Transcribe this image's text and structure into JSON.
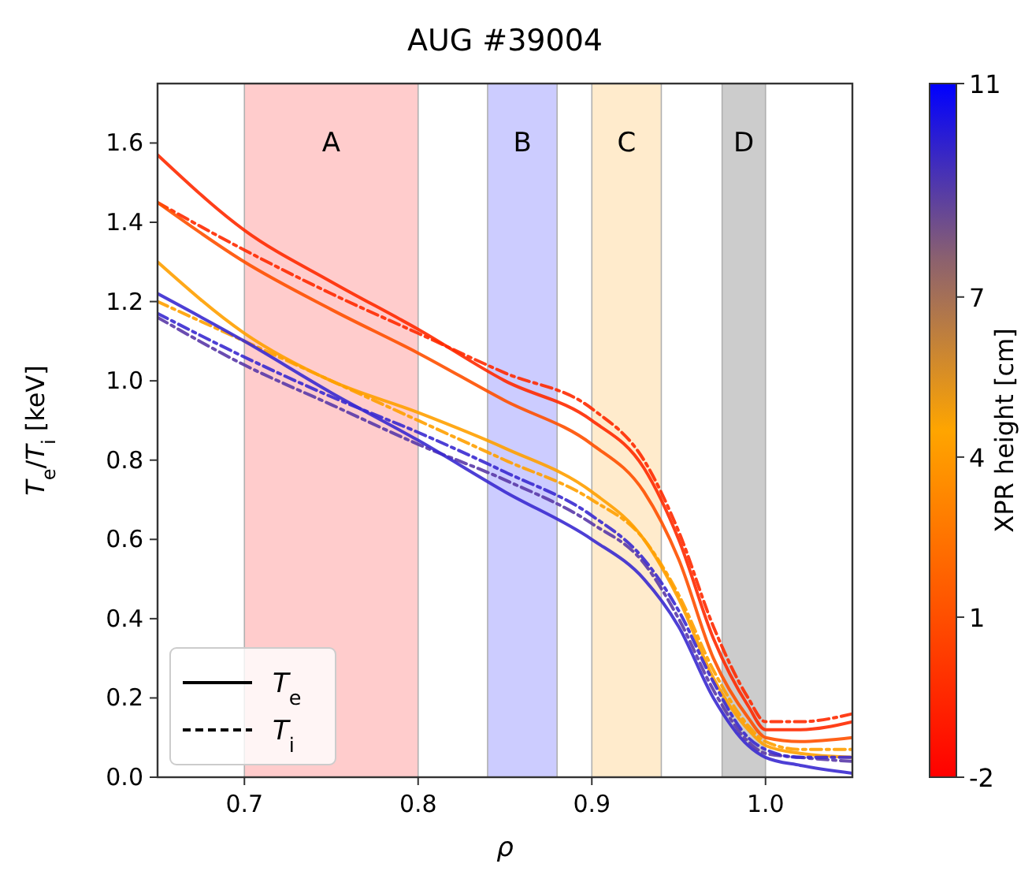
{
  "chart_data": {
    "type": "line",
    "title": "AUG #39004",
    "xlabel": "ρ",
    "ylabel": "T$_{e}$/T$_{i}$ [keV]",
    "clabel": "XPR height [cm]",
    "x": [
      0.65,
      0.7,
      0.75,
      0.8,
      0.85,
      0.9,
      0.93,
      0.95,
      0.97,
      0.99,
      1.0,
      1.02,
      1.05
    ],
    "series": [
      {
        "color": "#ff2a00",
        "line_style": "solid",
        "values": [
          1.57,
          1.38,
          1.25,
          1.13,
          1.0,
          0.9,
          0.78,
          0.6,
          0.35,
          0.18,
          0.12,
          0.12,
          0.14
        ]
      },
      {
        "color": "#ff2a00",
        "line_style": "dashed",
        "values": [
          1.45,
          1.33,
          1.22,
          1.12,
          1.02,
          0.93,
          0.8,
          0.62,
          0.38,
          0.2,
          0.14,
          0.14,
          0.16
        ]
      },
      {
        "color": "#ff5000",
        "line_style": "solid",
        "values": [
          1.45,
          1.3,
          1.18,
          1.07,
          0.95,
          0.84,
          0.72,
          0.55,
          0.3,
          0.15,
          0.1,
          0.09,
          0.1
        ]
      },
      {
        "color": "#ffa000",
        "line_style": "solid",
        "values": [
          1.3,
          1.12,
          1.0,
          0.92,
          0.83,
          0.72,
          0.6,
          0.45,
          0.25,
          0.12,
          0.08,
          0.06,
          0.05
        ]
      },
      {
        "color": "#ffa000",
        "line_style": "dashed",
        "values": [
          1.2,
          1.1,
          1.0,
          0.9,
          0.8,
          0.7,
          0.6,
          0.46,
          0.27,
          0.13,
          0.09,
          0.07,
          0.07
        ]
      },
      {
        "color": "#5a3aa8",
        "line_style": "dashed",
        "values": [
          1.16,
          1.04,
          0.94,
          0.84,
          0.75,
          0.64,
          0.54,
          0.4,
          0.22,
          0.09,
          0.06,
          0.05,
          0.04
        ]
      },
      {
        "color": "#3a2ad0",
        "line_style": "solid",
        "values": [
          1.22,
          1.1,
          0.97,
          0.85,
          0.72,
          0.6,
          0.5,
          0.38,
          0.2,
          0.08,
          0.05,
          0.03,
          0.01
        ]
      },
      {
        "color": "#3a2ad0",
        "line_style": "dashed",
        "values": [
          1.17,
          1.06,
          0.96,
          0.87,
          0.77,
          0.66,
          0.55,
          0.42,
          0.24,
          0.1,
          0.07,
          0.05,
          0.05
        ]
      },
      {
        "name": "T$_{e}$",
        "color": "#000000",
        "line_style": "solid",
        "values": [
          null,
          null,
          null,
          null,
          null,
          null,
          null,
          null,
          null,
          null,
          null,
          null,
          null
        ]
      },
      {
        "name": "T$_{i}$",
        "color": "#000000",
        "line_style": "dashed",
        "values": [
          null,
          null,
          null,
          null,
          null,
          null,
          null,
          null,
          null,
          null,
          null,
          null,
          null
        ]
      }
    ],
    "bands": [
      {
        "axis": "x",
        "from": 0.7,
        "to": 0.8,
        "label": "A",
        "color": "#ffcccc"
      },
      {
        "axis": "x",
        "from": 0.84,
        "to": 0.88,
        "label": "B",
        "color": "#ccccff"
      },
      {
        "axis": "x",
        "from": 0.9,
        "to": 0.94,
        "label": "C",
        "color": "#ffebcc"
      },
      {
        "axis": "x",
        "from": 0.975,
        "to": 1.0,
        "label": "D",
        "color": "#cccccc"
      }
    ],
    "xlim": [
      0.65,
      1.05
    ],
    "xticks": [
      0.7,
      0.8,
      0.9,
      {
        "value": 1.0,
        "label": "1.0"
      }
    ],
    "ylim": [
      0,
      1.75
    ],
    "yticks": [
      {
        "value": 0,
        "label": "0.0"
      },
      0.2,
      0.4,
      0.6,
      0.8,
      {
        "value": 1.0,
        "label": "1.0"
      },
      1.2,
      1.4,
      1.6
    ],
    "clim": [
      -2,
      11
    ],
    "cticks": [
      -2,
      1,
      4,
      7,
      11
    ],
    "grid": false,
    "legend": "bottom left"
  }
}
